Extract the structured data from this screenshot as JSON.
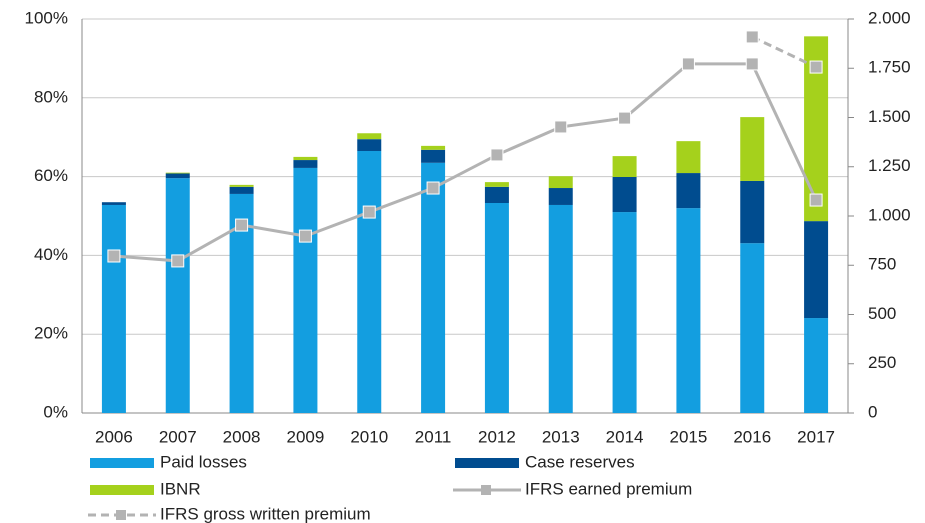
{
  "chart_data": {
    "type": "bar",
    "categories": [
      "2006",
      "2007",
      "2008",
      "2009",
      "2010",
      "2011",
      "2012",
      "2013",
      "2014",
      "2015",
      "2016",
      "2017"
    ],
    "stacked": true,
    "series": [
      {
        "name": "Paid losses",
        "color": "#139ee0",
        "values": [
          52.8,
          59.6,
          55.6,
          62.2,
          66.5,
          63.5,
          53.3,
          52.8,
          51.0,
          52.0,
          43.1,
          24.1
        ]
      },
      {
        "name": "Case reserves",
        "color": "#004c8f",
        "values": [
          0.7,
          1.2,
          1.8,
          2.0,
          3.0,
          3.3,
          4.1,
          4.3,
          8.9,
          8.9,
          15.8,
          24.6
        ]
      },
      {
        "name": "IBNR",
        "color": "#a5d11c",
        "values": [
          0,
          0.2,
          0.5,
          0.8,
          1.5,
          1.0,
          1.2,
          3.0,
          5.3,
          8.1,
          16.2,
          46.9
        ]
      },
      {
        "name": "IFRS earned premium",
        "type": "line",
        "axis": "y2",
        "color": "#b3b3b3",
        "dashed": false,
        "values": [
          797,
          772,
          954,
          898,
          1020,
          1142,
          1310,
          1452,
          1497,
          1772,
          1772,
          1081
        ]
      },
      {
        "name": "IFRS gross written premium",
        "type": "line",
        "axis": "y2",
        "color": "#b3b3b3",
        "dashed": true,
        "values": [
          null,
          null,
          null,
          null,
          null,
          null,
          null,
          null,
          null,
          null,
          1909,
          1756
        ]
      }
    ],
    "ylim": [
      0,
      100
    ],
    "yticks": [
      {
        "value": 0,
        "label": "0%"
      },
      {
        "value": 20,
        "label": "20%"
      },
      {
        "value": 40,
        "label": "40%"
      },
      {
        "value": 60,
        "label": "60%"
      },
      {
        "value": 80,
        "label": "80%"
      },
      {
        "value": 100,
        "label": "100%"
      }
    ],
    "y2lim": [
      0,
      2000
    ],
    "y2ticks": [
      0,
      250,
      500,
      750,
      {
        "value": 1000,
        "label": "1.000"
      },
      {
        "value": 1250,
        "label": "1.250"
      },
      {
        "value": 1500,
        "label": "1.500"
      },
      {
        "value": 1750,
        "label": "1.750"
      },
      {
        "value": 2000,
        "label": "2.000"
      }
    ],
    "grid": true
  }
}
